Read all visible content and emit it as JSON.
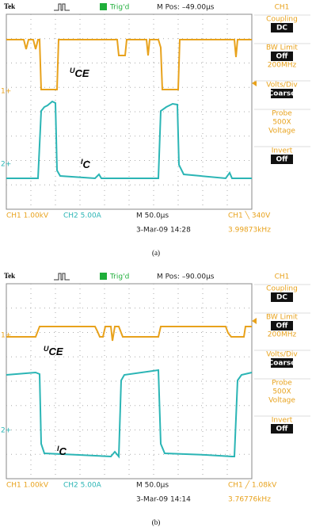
{
  "panels": [
    {
      "header": {
        "brand": "Tek",
        "trigger": "Trig'd",
        "position": "M Pos: –49.00µs",
        "channel": "CH1"
      },
      "menu": [
        {
          "title": [
            "Coupling"
          ],
          "box": "DC"
        },
        {
          "title": [
            "BW Limit"
          ],
          "box": "Off",
          "note": "200MHz"
        },
        {
          "title": [
            "Volts/Div"
          ],
          "box": "Coarse"
        },
        {
          "title": [
            "Probe",
            "500X",
            "Voltage"
          ]
        },
        {
          "title": [
            "Invert"
          ],
          "box": "Off"
        }
      ],
      "markers": [
        "1+",
        "2+"
      ],
      "traces": {
        "uce": "U",
        "uce_sub": "CE",
        "ic": "I",
        "ic_sub": "C"
      },
      "footer": {
        "ch1": "CH1  1.00kV",
        "ch2": "CH2  5.00A",
        "timebase": "M 50.0µs",
        "date": "3-Mar-09 14:28",
        "trigger": "CH1 ╲ 340V",
        "frequency": "3.99873kHz"
      },
      "caption": "(a)"
    },
    {
      "header": {
        "brand": "Tek",
        "trigger": "Trig'd",
        "position": "M Pos: –90.00µs",
        "channel": "CH1"
      },
      "menu": [
        {
          "title": [
            "Coupling"
          ],
          "box": "DC"
        },
        {
          "title": [
            "BW Limit"
          ],
          "box": "Off",
          "note": "200MHz"
        },
        {
          "title": [
            "Volts/Div"
          ],
          "box": "Coarse"
        },
        {
          "title": [
            "Probe",
            "500X",
            "Voltage"
          ]
        },
        {
          "title": [
            "Invert"
          ],
          "box": "Off"
        }
      ],
      "markers": [
        "1+",
        "2+"
      ],
      "traces": {
        "uce": "U",
        "uce_sub": "CE",
        "ic": "I",
        "ic_sub": "C"
      },
      "footer": {
        "ch1": "CH1  1.00kV",
        "ch2": "CH2  5.00A",
        "timebase": "M 50.0µs",
        "date": "3-Mar-09 14:14",
        "trigger": "CH1 ╱ 1.08kV",
        "frequency": "3.76776kHz"
      },
      "caption": "(b)"
    }
  ]
}
